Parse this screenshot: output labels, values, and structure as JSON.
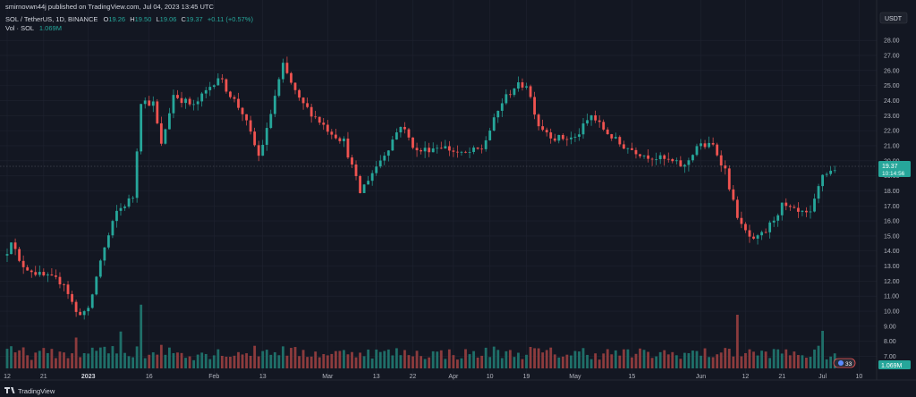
{
  "header": {
    "published_line": "smirnovwn44j published on TradingView.com, Jul 04, 2023 13:45 UTC",
    "symbol_line": "SOL / TetherUS, 1D, BINANCE",
    "ohlc": {
      "o_label": "O",
      "o": "19.26",
      "h_label": "H",
      "h": "19.50",
      "l_label": "L",
      "l": "19.06",
      "c_label": "C",
      "c": "19.37",
      "change": "+0.11 (+0.57%)"
    },
    "vol_label": "Vol · SOL",
    "vol_value": "1.069M"
  },
  "currency_badge": "USDT",
  "price_tag": {
    "price": "19.37",
    "countdown": "10:14:56"
  },
  "volume_tag": "1.069M",
  "flag_icon_label": "33",
  "footer_brand": "TradingView",
  "colors": {
    "background": "#131722",
    "up": "#26a69a",
    "down": "#ef5350",
    "up_vol": "#1f6f69",
    "down_vol": "#8c3b3d",
    "grid": "#1f2330",
    "text": "#b2b5be",
    "price_tag_bg": "#26a69a"
  },
  "chart_data": {
    "type": "candlestick",
    "title": "SOL / TetherUS, 1D, BINANCE",
    "series_note": "Daily OHLC candles with volume histogram, values estimated from the price axis",
    "y_axis": {
      "ylim": [
        6.2,
        28.9
      ],
      "ticks": [
        "7.00",
        "8.00",
        "9.00",
        "10.00",
        "11.00",
        "12.00",
        "13.00",
        "14.00",
        "15.00",
        "16.00",
        "17.00",
        "18.00",
        "19.00",
        "20.00",
        "21.00",
        "22.00",
        "23.00",
        "24.00",
        "25.00",
        "26.00",
        "27.00",
        "28.00"
      ]
    },
    "x_axis": {
      "start_date": "2022-12-12",
      "end_date": "2023-07-04",
      "ticks": [
        {
          "label": "12",
          "date": "2022-12-12"
        },
        {
          "label": "21",
          "date": "2022-12-21"
        },
        {
          "label": "2023",
          "date": "2023-01-01"
        },
        {
          "label": "16",
          "date": "2023-01-16"
        },
        {
          "label": "Feb",
          "date": "2023-02-01"
        },
        {
          "label": "13",
          "date": "2023-02-13"
        },
        {
          "label": "Mar",
          "date": "2023-03-01"
        },
        {
          "label": "13",
          "date": "2023-03-13"
        },
        {
          "label": "22",
          "date": "2023-03-22"
        },
        {
          "label": "Apr",
          "date": "2023-04-01"
        },
        {
          "label": "10",
          "date": "2023-04-10"
        },
        {
          "label": "19",
          "date": "2023-04-19"
        },
        {
          "label": "May",
          "date": "2023-05-01"
        },
        {
          "label": "15",
          "date": "2023-05-15"
        },
        {
          "label": "Jun",
          "date": "2023-06-01"
        },
        {
          "label": "12",
          "date": "2023-06-12"
        },
        {
          "label": "21",
          "date": "2023-06-21"
        },
        {
          "label": "Jul",
          "date": "2023-07-01"
        },
        {
          "label": "10",
          "date": "2023-07-10"
        }
      ]
    },
    "grid": true,
    "last_price": 19.37,
    "keypoints": [
      {
        "date": "2022-12-12",
        "close": 14.0
      },
      {
        "date": "2022-12-13",
        "close": 14.8
      },
      {
        "date": "2022-12-15",
        "close": 13.2
      },
      {
        "date": "2022-12-20",
        "close": 12.4
      },
      {
        "date": "2022-12-26",
        "close": 11.9
      },
      {
        "date": "2022-12-29",
        "close": 9.9
      },
      {
        "date": "2023-01-01",
        "close": 10.0
      },
      {
        "date": "2023-01-04",
        "close": 13.4
      },
      {
        "date": "2023-01-08",
        "close": 16.6
      },
      {
        "date": "2023-01-12",
        "close": 17.6
      },
      {
        "date": "2023-01-14",
        "close": 24.0
      },
      {
        "date": "2023-01-17",
        "close": 23.8
      },
      {
        "date": "2023-01-19",
        "close": 21.0
      },
      {
        "date": "2023-01-22",
        "close": 24.4
      },
      {
        "date": "2023-01-27",
        "close": 23.6
      },
      {
        "date": "2023-02-02",
        "close": 25.6
      },
      {
        "date": "2023-02-08",
        "close": 23.2
      },
      {
        "date": "2023-02-12",
        "close": 20.3
      },
      {
        "date": "2023-02-14",
        "close": 22.0
      },
      {
        "date": "2023-02-16",
        "close": 24.3
      },
      {
        "date": "2023-02-18",
        "close": 26.3
      },
      {
        "date": "2023-02-22",
        "close": 24.0
      },
      {
        "date": "2023-03-01",
        "close": 22.1
      },
      {
        "date": "2023-03-05",
        "close": 21.3
      },
      {
        "date": "2023-03-09",
        "close": 17.9
      },
      {
        "date": "2023-03-11",
        "close": 18.8
      },
      {
        "date": "2023-03-16",
        "close": 20.9
      },
      {
        "date": "2023-03-19",
        "close": 22.4
      },
      {
        "date": "2023-03-23",
        "close": 20.6
      },
      {
        "date": "2023-03-29",
        "close": 21.0
      },
      {
        "date": "2023-04-03",
        "close": 20.4
      },
      {
        "date": "2023-04-08",
        "close": 20.8
      },
      {
        "date": "2023-04-13",
        "close": 23.9
      },
      {
        "date": "2023-04-16",
        "close": 24.9
      },
      {
        "date": "2023-04-19",
        "close": 25.1
      },
      {
        "date": "2023-04-22",
        "close": 22.4
      },
      {
        "date": "2023-04-26",
        "close": 21.5
      },
      {
        "date": "2023-05-01",
        "close": 21.5
      },
      {
        "date": "2023-05-05",
        "close": 23.0
      },
      {
        "date": "2023-05-08",
        "close": 22.1
      },
      {
        "date": "2023-05-12",
        "close": 21.1
      },
      {
        "date": "2023-05-18",
        "close": 20.4
      },
      {
        "date": "2023-05-24",
        "close": 20.0
      },
      {
        "date": "2023-05-28",
        "close": 19.6
      },
      {
        "date": "2023-05-31",
        "close": 21.0
      },
      {
        "date": "2023-06-04",
        "close": 21.0
      },
      {
        "date": "2023-06-07",
        "close": 19.4
      },
      {
        "date": "2023-06-09",
        "close": 17.2
      },
      {
        "date": "2023-06-11",
        "close": 15.6
      },
      {
        "date": "2023-06-14",
        "close": 14.6
      },
      {
        "date": "2023-06-17",
        "close": 15.3
      },
      {
        "date": "2023-06-21",
        "close": 17.0
      },
      {
        "date": "2023-06-25",
        "close": 16.5
      },
      {
        "date": "2023-06-28",
        "close": 16.4
      },
      {
        "date": "2023-07-01",
        "close": 19.1
      },
      {
        "date": "2023-07-04",
        "close": 19.37
      }
    ],
    "volume_spikes": [
      {
        "date": "2023-01-14",
        "volume_rel": 0.95
      },
      {
        "date": "2023-01-09",
        "volume_rel": 0.55
      },
      {
        "date": "2022-12-29",
        "volume_rel": 0.46
      },
      {
        "date": "2023-06-10",
        "volume_rel": 0.8
      },
      {
        "date": "2023-07-01",
        "volume_rel": 0.56
      }
    ]
  }
}
